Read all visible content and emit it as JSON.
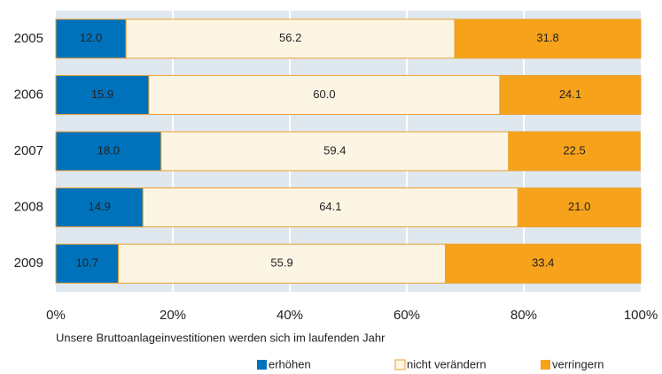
{
  "chart_data": {
    "type": "stacked-barh",
    "annotation": "Unsere Bruttoanlageinvestitionen werden sich im laufenden Jahr",
    "categories": [
      "2005",
      "2006",
      "2007",
      "2008",
      "2009"
    ],
    "series": [
      {
        "name": "erhöhen",
        "color": "#0072bc",
        "values": [
          12.0,
          15.9,
          18.0,
          14.9,
          10.7
        ],
        "value_labels": [
          "12.0",
          "15.9",
          "18.0",
          "14.9",
          "10.7"
        ]
      },
      {
        "name": "nicht verändern",
        "color": "#fdf5e4",
        "values": [
          56.2,
          60.0,
          59.4,
          64.1,
          55.9
        ],
        "value_labels": [
          "56.2",
          "60.0",
          "59.4",
          "64.1",
          "55.9"
        ]
      },
      {
        "name": "verringern",
        "color": "#f7a21b",
        "values": [
          31.8,
          24.1,
          22.5,
          21.0,
          33.4
        ],
        "value_labels": [
          "31.8",
          "24.1",
          "22.5",
          "21.0",
          "33.4"
        ]
      }
    ],
    "xlim": [
      0,
      100
    ],
    "xticks": [
      {
        "value": 0,
        "label": "0%"
      },
      {
        "value": 20,
        "label": "20%"
      },
      {
        "value": 40,
        "label": "40%"
      },
      {
        "value": 60,
        "label": "60%"
      },
      {
        "value": 80,
        "label": "80%"
      },
      {
        "value": 100,
        "label": "100%"
      }
    ],
    "grid": true
  }
}
